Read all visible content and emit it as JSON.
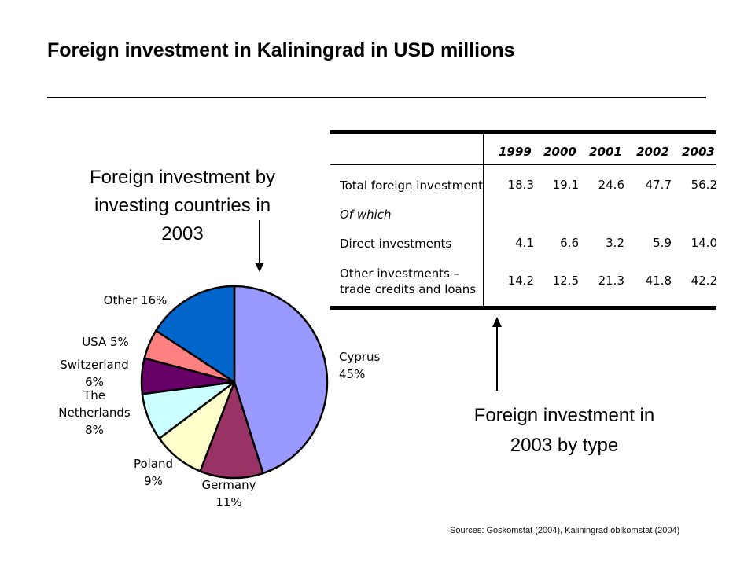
{
  "title": "Foreign investment in Kaliningrad in USD millions",
  "pie_caption": [
    "Foreign investment by",
    "investing countries in",
    "2003"
  ],
  "type_caption": [
    "Foreign investment in",
    "2003 by type"
  ],
  "sources": "Sources: Goskomstat (2004),  Kaliningrad oblkomstat (2004)",
  "chart_data": [
    {
      "type": "pie",
      "categories": [
        "Cyprus",
        "Germany",
        "Poland",
        "The Netherlands",
        "Switzerland",
        "USA",
        "Other"
      ],
      "values": [
        45,
        11,
        9,
        8,
        6,
        5,
        16
      ],
      "labels": [
        [
          "Cyprus",
          "45%"
        ],
        [
          "Germany",
          "11%"
        ],
        [
          "Poland",
          "9%"
        ],
        [
          "The",
          "Netherlands",
          "8%"
        ],
        [
          "Switzerland",
          "6%"
        ],
        [
          "USA 5%"
        ],
        [
          "Other 16%"
        ]
      ],
      "colors": [
        "#9999ff",
        "#993366",
        "#ffffcc",
        "#ccffff",
        "#660066",
        "#ff8080",
        "#0066cc"
      ]
    },
    {
      "type": "table",
      "columns": [
        "",
        "1999",
        "2000",
        "2001",
        "2002",
        "2003"
      ],
      "rows": [
        {
          "label": [
            "Total foreign investment"
          ],
          "italic": false,
          "values": [
            "18.3",
            "19.1",
            "24.6",
            "47.7",
            "56.2"
          ]
        },
        {
          "label": [
            "Of which"
          ],
          "italic": true,
          "values": [
            "",
            "",
            "",
            "",
            ""
          ]
        },
        {
          "label": [
            "Direct investments"
          ],
          "italic": false,
          "values": [
            "4.1",
            "6.6",
            "3.2",
            "5.9",
            "14.0"
          ]
        },
        {
          "label": [
            "Other investments –",
            "trade credits and loans"
          ],
          "italic": false,
          "values": [
            "14.2",
            "12.5",
            "21.3",
            "41.8",
            "42.2"
          ]
        }
      ]
    }
  ]
}
